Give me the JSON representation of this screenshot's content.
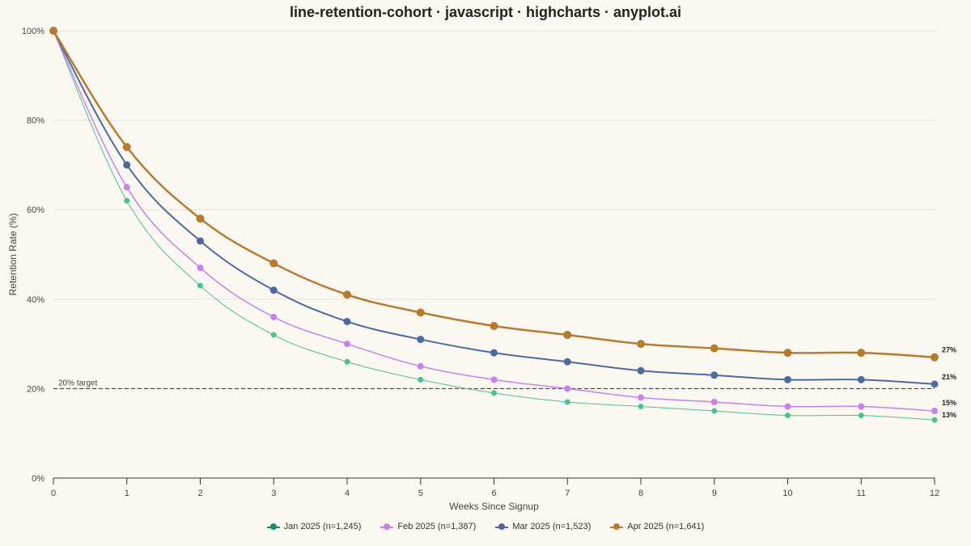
{
  "chart_data": {
    "type": "line",
    "title": "line-retention-cohort · javascript · highcharts · anyplot.ai",
    "xlabel": "Weeks Since Signup",
    "ylabel": "Retention Rate (%)",
    "x": [
      0,
      1,
      2,
      3,
      4,
      5,
      6,
      7,
      8,
      9,
      10,
      11,
      12
    ],
    "xlim": [
      0,
      12
    ],
    "ylim": [
      0,
      100
    ],
    "y_ticks": [
      0,
      20,
      40,
      60,
      80,
      100
    ],
    "y_tick_suffix": "%",
    "grid": true,
    "legend_position": "bottom",
    "reference_line": {
      "value": 20,
      "label": "20% target"
    },
    "series": [
      {
        "name": "Jan 2025 (n=1,245)",
        "color": "#4DBE95",
        "legend_color": "#12906A",
        "values": [
          100,
          62,
          43,
          32,
          26,
          22,
          19,
          17,
          16,
          15,
          14,
          14,
          13
        ],
        "end_label": "13%"
      },
      {
        "name": "Feb 2025 (n=1,387)",
        "color": "#C880EE",
        "legend_color": "#C880EE",
        "values": [
          100,
          65,
          47,
          36,
          30,
          25,
          22,
          20,
          18,
          17,
          16,
          16,
          15
        ],
        "end_label": "15%"
      },
      {
        "name": "Mar 2025 (n=1,523)",
        "color": "#4A6AA0",
        "legend_color": "#4A6AA0",
        "values": [
          100,
          70,
          53,
          42,
          35,
          31,
          28,
          26,
          24,
          23,
          22,
          22,
          21
        ],
        "end_label": "21%"
      },
      {
        "name": "Apr 2025 (n=1,641)",
        "color": "#B87A2E",
        "legend_color": "#B87A2E",
        "values": [
          100,
          74,
          58,
          48,
          41,
          37,
          34,
          32,
          30,
          29,
          28,
          28,
          27
        ],
        "end_label": "27%"
      }
    ]
  }
}
